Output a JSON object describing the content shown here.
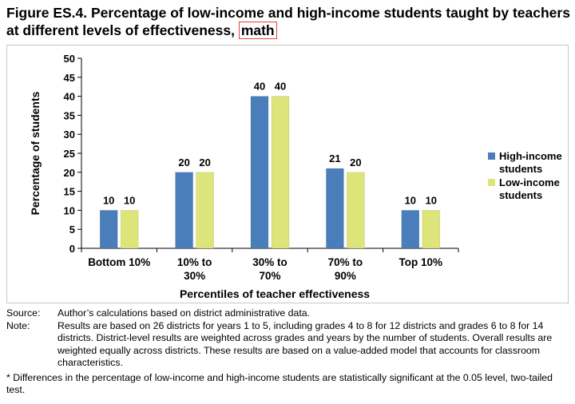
{
  "title": {
    "main": "Figure ES.4. Percentage of low-income and high-income students taught by teachers at different levels of effectiveness, ",
    "highlight": "math"
  },
  "chart_data": {
    "type": "bar",
    "categories": [
      [
        "Bottom 10%"
      ],
      [
        "10% to",
        "30%"
      ],
      [
        "30% to",
        "70%"
      ],
      [
        "70% to",
        "90%"
      ],
      [
        "Top 10%"
      ]
    ],
    "series": [
      {
        "name": "High-income students",
        "legend_lines": [
          "High-income",
          "students"
        ],
        "color": "#4a7ebb",
        "values": [
          10,
          20,
          40,
          21,
          10
        ]
      },
      {
        "name": "Low-income students",
        "legend_lines": [
          "Low-income",
          "students"
        ],
        "color": "#dde57a",
        "values": [
          10,
          20,
          40,
          20,
          10
        ]
      }
    ],
    "xlabel": "Percentiles of teacher effectiveness",
    "ylabel": "Percentage of students",
    "ylim": [
      0,
      50
    ],
    "yticks": [
      0,
      5,
      10,
      15,
      20,
      25,
      30,
      35,
      40,
      45,
      50
    ],
    "grid": false,
    "legend": "right"
  },
  "notes": {
    "source_label": "Source:",
    "source_text": "Author’s calculations based on district administrative data.",
    "note_label": "Note:",
    "note_text": "Results are based on 26 districts for years 1 to 5, including grades 4 to 8 for 12 districts and grades 6 to 8 for 14 districts. District-level results are weighted across grades and years by the number of students. Overall results are weighted equally across districts. These results are based on a value-added model that accounts for classroom characteristics.",
    "footnote": "* Differences in the percentage of low-income and high-income students are statistically significant at the 0.05 level, two-tailed test."
  }
}
